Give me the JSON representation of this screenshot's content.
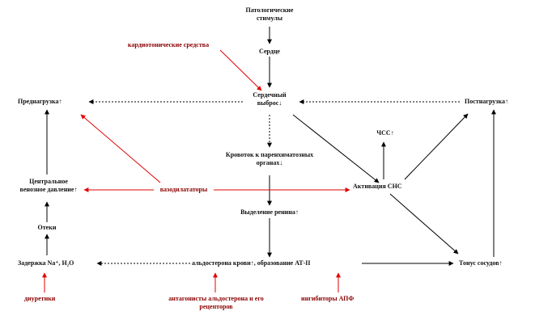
{
  "nodes": {
    "stimuli": [
      "Патологические",
      "стимулы"
    ],
    "heart": "Сердце",
    "cardiotonic": "кардиотонические средства",
    "cardiac_output": [
      "Сердечный",
      "выброс↓"
    ],
    "preload": "Преднагрузка↑",
    "afterload": "Постнагрузка↑",
    "hr": "ЧСС↑",
    "renal_flow": [
      "Кровоток к паренхиматозных",
      "органах↓"
    ],
    "cvp": [
      "Центральное",
      "венозное давление↑"
    ],
    "vasodilators": "вазодилататоры",
    "sns": "Активация СНС",
    "renin": "Выделение ренина↑",
    "edema": "Отеки",
    "retention": "Задержка Na⁺, H₂O",
    "aldosterone": "альдостерона крови↑, образование АТ-II",
    "vascular_tone": "Тонус сосудов↑",
    "diuretics": "диуретики",
    "aldo_antagonists": [
      "антагонисты альдостерона и его",
      "рецепторов"
    ],
    "ace_inhibitors": "ингибиторы АПФ"
  },
  "colors": {
    "black": "#000000",
    "red": "#e00000",
    "dark_red": "#8b0000"
  }
}
